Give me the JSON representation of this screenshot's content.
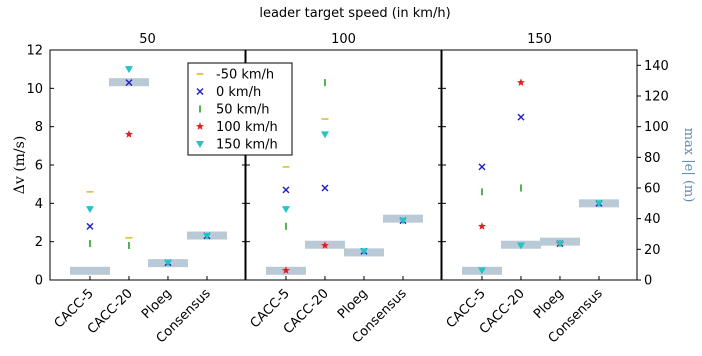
{
  "chart_data": {
    "type": "scatter",
    "suptitle": "leader target speed (in km/h)",
    "panels": [
      "50",
      "100",
      "150"
    ],
    "categories": [
      "CACC-5",
      "CACC-20",
      "Ploeg",
      "Consensus"
    ],
    "ylabel_left": "Δv (m/s)",
    "ylabel_right": "max |e| (m)",
    "ylim_left": [
      0,
      12
    ],
    "ylim_right": [
      0,
      150
    ],
    "yticks_left": [
      "0",
      "2",
      "4",
      "6",
      "8",
      "10",
      "12"
    ],
    "yticks_right": [
      "0",
      "20",
      "40",
      "60",
      "80",
      "100",
      "120",
      "140"
    ],
    "legend": {
      "placement": "inside first panel, upper right",
      "entries": [
        {
          "label": "-50 km/h",
          "marker": "hline",
          "color": "#d4c11a"
        },
        {
          "label": "0 km/h",
          "marker": "x",
          "color": "#2020c0"
        },
        {
          "label": "50 km/h",
          "marker": "vline",
          "color": "#1a9a1a"
        },
        {
          "label": "100 km/h",
          "marker": "star",
          "color": "#e02020"
        },
        {
          "label": "150 km/h",
          "marker": "tri",
          "color": "#22c4c4"
        }
      ]
    },
    "series_order": [
      "-50 km/h",
      "0 km/h",
      "50 km/h",
      "100 km/h",
      "150 km/h"
    ],
    "delta_v": [
      [
        [
          4.6,
          2.8,
          1.9,
          null,
          3.7
        ],
        [
          2.2,
          10.3,
          1.8,
          7.6,
          11.0
        ],
        [
          null,
          0.9,
          null,
          null,
          0.9
        ],
        [
          null,
          2.3,
          null,
          null,
          2.3
        ]
      ],
      [
        [
          5.9,
          4.7,
          2.8,
          0.5,
          3.7
        ],
        [
          8.4,
          4.8,
          10.3,
          1.8,
          7.6
        ],
        [
          null,
          1.5,
          null,
          null,
          1.5
        ],
        [
          null,
          3.1,
          null,
          null,
          3.1
        ]
      ],
      [
        [
          null,
          5.9,
          4.6,
          2.8,
          0.5
        ],
        [
          null,
          8.5,
          4.8,
          10.3,
          1.8
        ],
        [
          null,
          1.9,
          null,
          1.9,
          1.9
        ],
        [
          null,
          4.0,
          null,
          null,
          4.0
        ]
      ]
    ],
    "max_e_bars": [
      [
        6,
        129,
        11,
        29
      ],
      [
        6,
        23,
        18,
        40
      ],
      [
        6,
        23,
        25,
        50
      ]
    ]
  }
}
